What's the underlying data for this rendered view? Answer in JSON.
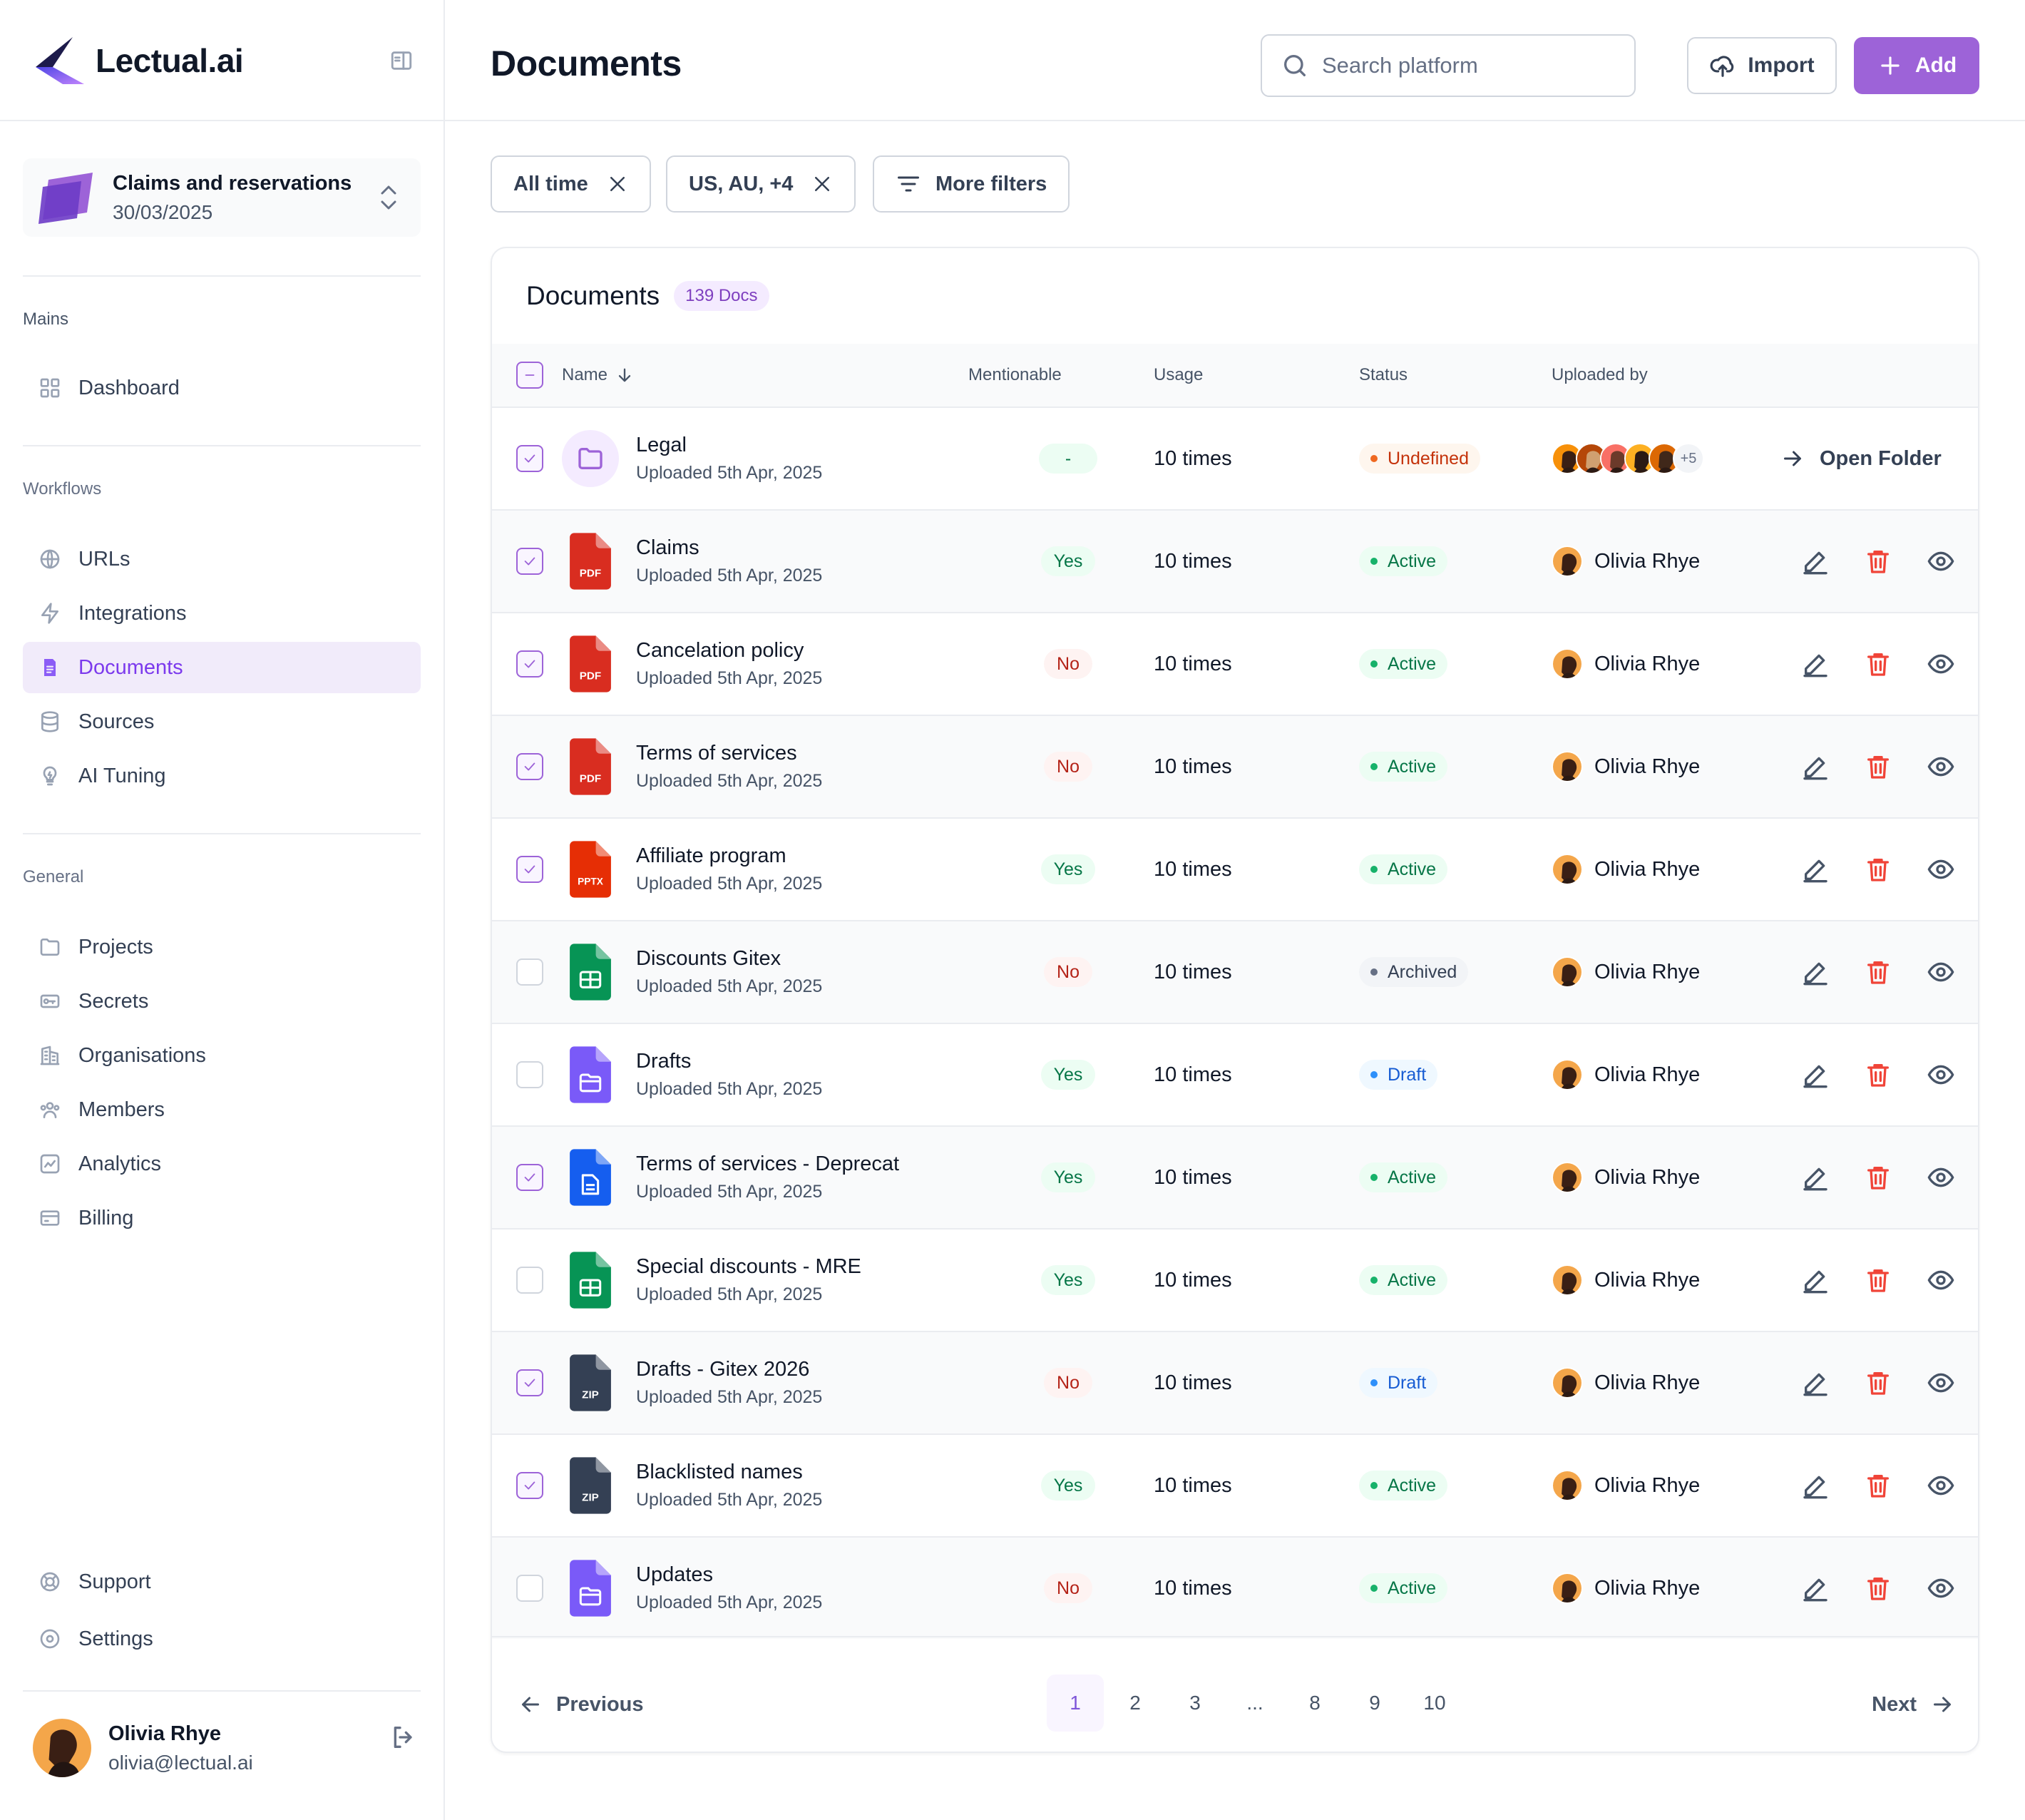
{
  "brand": {
    "name": "Lectual",
    "suffix": ".ai"
  },
  "project": {
    "title": "Claims and reservations",
    "date": "30/03/2025"
  },
  "sidebar": {
    "mains_label": "Mains",
    "mains": [
      {
        "label": "Dashboard",
        "icon": "grid-icon"
      }
    ],
    "workflows_label": "Workflows",
    "workflows": [
      {
        "label": "URLs",
        "icon": "globe-icon"
      },
      {
        "label": "Integrations",
        "icon": "zap-icon"
      },
      {
        "label": "Documents",
        "icon": "document-icon",
        "active": true
      },
      {
        "label": "Sources",
        "icon": "database-icon"
      },
      {
        "label": "AI Tuning",
        "icon": "bulb-icon"
      }
    ],
    "general_label": "General",
    "general": [
      {
        "label": "Projects",
        "icon": "folder-icon"
      },
      {
        "label": "Secrets",
        "icon": "key-icon"
      },
      {
        "label": "Organisations",
        "icon": "building-icon"
      },
      {
        "label": "Members",
        "icon": "users-icon"
      },
      {
        "label": "Analytics",
        "icon": "chart-icon"
      },
      {
        "label": "Billing",
        "icon": "card-icon"
      }
    ],
    "bottom": [
      {
        "label": "Support",
        "icon": "lifebuoy-icon"
      },
      {
        "label": "Settings",
        "icon": "settings-icon"
      }
    ],
    "user": {
      "name": "Olivia Rhye",
      "email": "olivia@lectual.ai"
    }
  },
  "header": {
    "title": "Documents",
    "search_placeholder": "Search platform",
    "import_label": "Import",
    "add_label": "Add"
  },
  "filters": {
    "time": "All time",
    "region": "US, AU, +4",
    "more": "More filters"
  },
  "table": {
    "title": "Documents",
    "count_badge": "139 Docs",
    "columns": {
      "name": "Name",
      "mentionable": "Mentionable",
      "usage": "Usage",
      "status": "Status",
      "uploaded_by": "Uploaded by"
    },
    "open_folder_label": "Open Folder",
    "more_uploaders": "+5",
    "rows": [
      {
        "name": "Legal",
        "sub": "Uploaded 5th Apr, 2025",
        "type": "folder",
        "checked": true,
        "mentionable": "-",
        "usage": "10 times",
        "status": "Undefined"
      },
      {
        "name": "Claims",
        "sub": "Uploaded 5th Apr, 2025",
        "type": "PDF",
        "checked": true,
        "mentionable": "Yes",
        "usage": "10 times",
        "status": "Active",
        "uploader": "Olivia Rhye"
      },
      {
        "name": "Cancelation policy",
        "sub": "Uploaded 5th Apr, 2025",
        "type": "PDF",
        "checked": true,
        "mentionable": "No",
        "usage": "10 times",
        "status": "Active",
        "uploader": "Olivia Rhye"
      },
      {
        "name": "Terms of services",
        "sub": "Uploaded 5th Apr, 2025",
        "type": "PDF",
        "checked": true,
        "mentionable": "No",
        "usage": "10 times",
        "status": "Active",
        "uploader": "Olivia Rhye"
      },
      {
        "name": "Affiliate program",
        "sub": "Uploaded 5th Apr, 2025",
        "type": "PPTX",
        "checked": true,
        "mentionable": "Yes",
        "usage": "10 times",
        "status": "Active",
        "uploader": "Olivia Rhye"
      },
      {
        "name": "Discounts Gitex",
        "sub": "Uploaded 5th Apr, 2025",
        "type": "sheet",
        "checked": false,
        "mentionable": "No",
        "usage": "10 times",
        "status": "Archived",
        "uploader": "Olivia Rhye"
      },
      {
        "name": "Drafts",
        "sub": "Uploaded 5th Apr, 2025",
        "type": "purple-folder",
        "checked": false,
        "mentionable": "Yes",
        "usage": "10 times",
        "status": "Draft",
        "uploader": "Olivia Rhye"
      },
      {
        "name": "Terms of services  - Deprecat",
        "sub": "Uploaded 5th Apr, 2025",
        "type": "doc",
        "checked": true,
        "mentionable": "Yes",
        "usage": "10 times",
        "status": "Active",
        "uploader": "Olivia Rhye"
      },
      {
        "name": "Special discounts - MRE",
        "sub": "Uploaded 5th Apr, 2025",
        "type": "sheet",
        "checked": false,
        "mentionable": "Yes",
        "usage": "10 times",
        "status": "Active",
        "uploader": "Olivia Rhye"
      },
      {
        "name": "Drafts - Gitex 2026",
        "sub": "Uploaded 5th Apr, 2025",
        "type": "ZIP",
        "checked": true,
        "mentionable": "No",
        "usage": "10 times",
        "status": "Draft",
        "uploader": "Olivia Rhye"
      },
      {
        "name": "Blacklisted names",
        "sub": "Uploaded 5th Apr, 2025",
        "type": "ZIP",
        "checked": true,
        "mentionable": "Yes",
        "usage": "10 times",
        "status": "Active",
        "uploader": "Olivia Rhye"
      },
      {
        "name": "Updates",
        "sub": "Uploaded 5th Apr, 2025",
        "type": "purple-folder",
        "checked": false,
        "mentionable": "No",
        "usage": "10 times",
        "status": "Active",
        "uploader": "Olivia Rhye"
      }
    ]
  },
  "pagination": {
    "previous": "Previous",
    "next": "Next",
    "pages": [
      "1",
      "2",
      "3",
      "...",
      "8",
      "9",
      "10"
    ],
    "current": "1"
  },
  "colors": {
    "accent": "#9d63d8",
    "active_nav_bg": "#f1ebfa",
    "pdf": "#d92d20",
    "pptx": "#e62e05",
    "sheet": "#079455",
    "doc": "#155eef",
    "zip": "#344054",
    "purple_folder": "#7a5af8"
  }
}
